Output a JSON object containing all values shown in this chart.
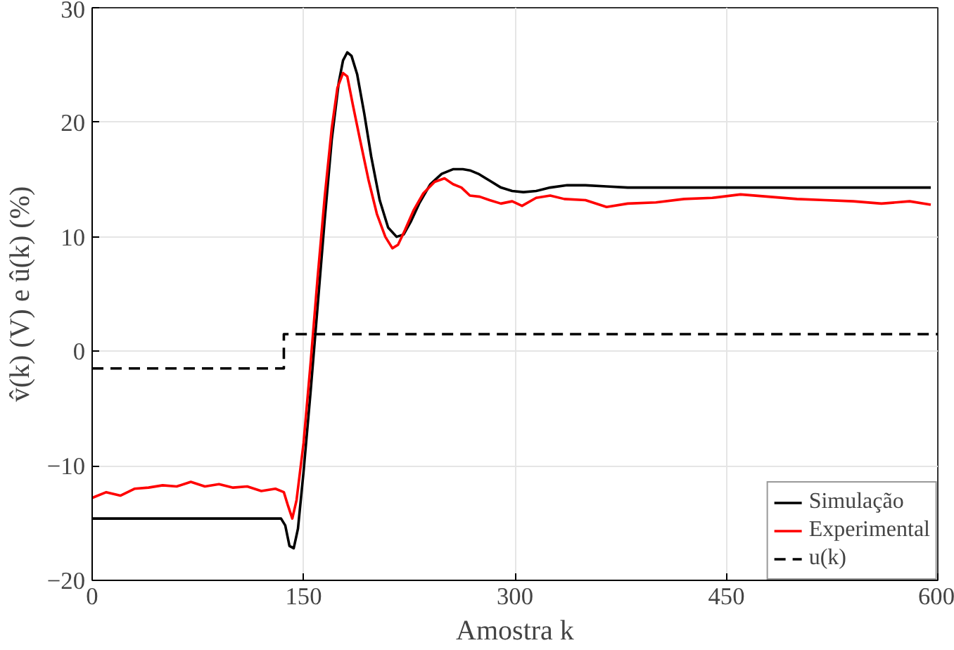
{
  "chart_data": {
    "type": "line",
    "xlabel": "Amostra k",
    "ylabel": "v̂(k) (V) e û(k) (%)",
    "xlim": [
      0,
      600
    ],
    "ylim": [
      -20,
      30
    ],
    "xticks": [
      0,
      150,
      300,
      450,
      600
    ],
    "yticks": [
      -20,
      -10,
      0,
      10,
      20,
      30
    ],
    "grid": true,
    "legend": "bottom right",
    "line_style": "solid",
    "series": [
      {
        "name": "Simulação",
        "color": "#000000",
        "x": [
          0,
          134,
          137,
          140,
          143,
          146,
          150,
          155,
          160,
          165,
          170,
          175,
          178,
          181,
          184,
          188,
          193,
          198,
          204,
          210,
          216,
          221,
          226,
          232,
          240,
          248,
          256,
          263,
          268,
          274,
          282,
          290,
          298,
          306,
          315,
          325,
          337,
          350,
          365,
          380,
          400,
          450,
          500,
          550,
          595
        ],
        "values": [
          -14.6,
          -14.6,
          -15.2,
          -17.0,
          -17.2,
          -15.5,
          -10.5,
          -3.5,
          4.0,
          11.5,
          18.5,
          23.5,
          25.4,
          26.1,
          25.8,
          24.2,
          20.8,
          17.0,
          13.2,
          10.8,
          10.0,
          10.2,
          11.3,
          12.9,
          14.6,
          15.5,
          15.9,
          15.9,
          15.8,
          15.5,
          14.9,
          14.3,
          14.0,
          13.9,
          14.0,
          14.3,
          14.5,
          14.5,
          14.4,
          14.3,
          14.3,
          14.3,
          14.3,
          14.3,
          14.3
        ]
      },
      {
        "name": "Experimental",
        "color": "#ff0000",
        "x": [
          0,
          10,
          20,
          30,
          40,
          50,
          60,
          70,
          80,
          90,
          100,
          110,
          120,
          130,
          136,
          139,
          142,
          145,
          150,
          155,
          160,
          165,
          170,
          174,
          178,
          181,
          185,
          190,
          196,
          202,
          208,
          213,
          217,
          222,
          228,
          235,
          243,
          250,
          256,
          262,
          268,
          275,
          282,
          290,
          298,
          305,
          315,
          325,
          335,
          350,
          365,
          380,
          400,
          420,
          440,
          460,
          480,
          500,
          520,
          540,
          560,
          580,
          595
        ],
        "values": [
          -12.8,
          -12.3,
          -12.6,
          -12.0,
          -11.9,
          -11.7,
          -11.8,
          -11.4,
          -11.8,
          -11.6,
          -11.9,
          -11.8,
          -12.2,
          -12.0,
          -12.3,
          -13.5,
          -14.6,
          -13.0,
          -8.0,
          -1.0,
          6.5,
          13.5,
          19.5,
          23.0,
          24.3,
          24.0,
          21.5,
          18.5,
          15.0,
          12.0,
          10.0,
          9.0,
          9.3,
          10.6,
          12.3,
          13.8,
          14.8,
          15.1,
          14.6,
          14.3,
          13.6,
          13.5,
          13.2,
          12.9,
          13.1,
          12.7,
          13.4,
          13.6,
          13.3,
          13.2,
          12.6,
          12.9,
          13.0,
          13.3,
          13.4,
          13.7,
          13.5,
          13.3,
          13.2,
          13.1,
          12.9,
          13.1,
          12.8
        ]
      },
      {
        "name": "u(k)",
        "color": "#000000",
        "type": "step",
        "line_style": "dashed",
        "x": [
          0,
          136,
          600
        ],
        "values": [
          -1.5,
          1.5,
          1.5
        ]
      }
    ]
  }
}
